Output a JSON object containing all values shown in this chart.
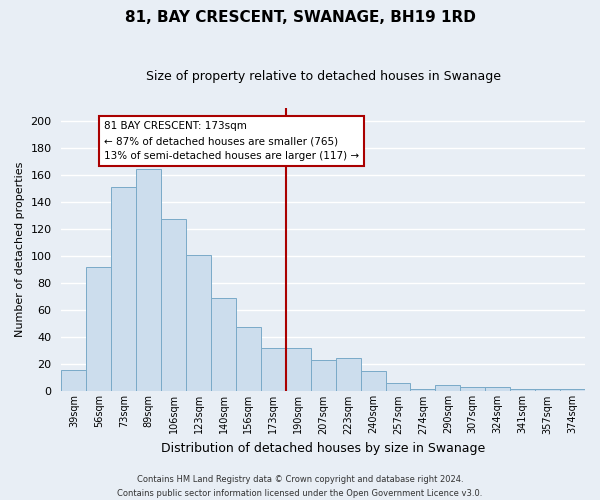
{
  "title": "81, BAY CRESCENT, SWANAGE, BH19 1RD",
  "subtitle": "Size of property relative to detached houses in Swanage",
  "xlabel": "Distribution of detached houses by size in Swanage",
  "ylabel": "Number of detached properties",
  "bar_labels": [
    "39sqm",
    "56sqm",
    "73sqm",
    "89sqm",
    "106sqm",
    "123sqm",
    "140sqm",
    "156sqm",
    "173sqm",
    "190sqm",
    "207sqm",
    "223sqm",
    "240sqm",
    "257sqm",
    "274sqm",
    "290sqm",
    "307sqm",
    "324sqm",
    "341sqm",
    "357sqm",
    "374sqm"
  ],
  "bar_values": [
    16,
    92,
    151,
    165,
    128,
    101,
    69,
    48,
    32,
    32,
    23,
    25,
    15,
    6,
    2,
    5,
    3,
    3,
    2,
    2,
    2
  ],
  "bar_color": "#ccdded",
  "bar_edge_color": "#7aaac8",
  "highlight_index": 8,
  "highlight_line_color": "#aa0000",
  "annotation_title": "81 BAY CRESCENT: 173sqm",
  "annotation_line1": "← 87% of detached houses are smaller (765)",
  "annotation_line2": "13% of semi-detached houses are larger (117) →",
  "annotation_box_color": "#ffffff",
  "annotation_box_edge": "#aa0000",
  "ylim": [
    0,
    210
  ],
  "yticks": [
    0,
    20,
    40,
    60,
    80,
    100,
    120,
    140,
    160,
    180,
    200
  ],
  "footer_line1": "Contains HM Land Registry data © Crown copyright and database right 2024.",
  "footer_line2": "Contains public sector information licensed under the Open Government Licence v3.0.",
  "background_color": "#e8eef5",
  "grid_color": "#ffffff",
  "title_fontsize": 11,
  "subtitle_fontsize": 9,
  "xlabel_fontsize": 9,
  "ylabel_fontsize": 8,
  "xtick_fontsize": 7,
  "ytick_fontsize": 8
}
